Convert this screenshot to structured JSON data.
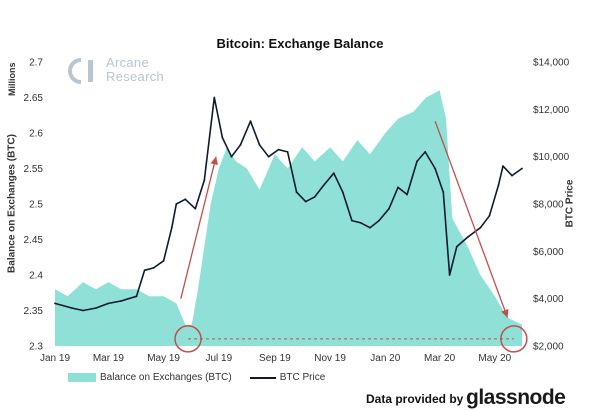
{
  "header": {
    "title": "Bitcoin: Exchange Balance"
  },
  "logo": {
    "line1": "Arcane",
    "line2": "Research",
    "icon": "arcane-research-logo"
  },
  "footer": {
    "provided_by": "Data provided by",
    "brand": "glassnode"
  },
  "colors": {
    "area": "#8fe0d6",
    "price_line": "#0f1a2e",
    "arrow": "#c0504d",
    "highlight": "#c0504d"
  },
  "chart_data": {
    "type": "area",
    "title": "Bitcoin: Exchange Balance",
    "y_unit_label": "Millions",
    "ylabel": "Balance on Exchanges (BTC)",
    "y2label": "BTC Price",
    "x_ticks": [
      "Jan 19",
      "Mar 19",
      "May 19",
      "Jul 19",
      "Sep 19",
      "Nov 19",
      "Jan 20",
      "Mar 20",
      "May 20"
    ],
    "y_ticks": [
      "2.3",
      "2.35",
      "2.4",
      "2.45",
      "2.5",
      "2.55",
      "2.6",
      "2.65",
      "2.7"
    ],
    "y2_ticks": [
      "$2,000",
      "$4,000",
      "$6,000",
      "$8,000",
      "$10,000",
      "$12,000",
      "$14,000"
    ],
    "ylim": [
      2.3,
      2.7
    ],
    "y2lim": [
      2000,
      14000
    ],
    "xlim": [
      "2019-01-01",
      "2020-05-31"
    ],
    "legend": [
      "Balance on Exchanges (BTC)",
      "BTC Price"
    ],
    "legend_position": "bottom",
    "series": [
      {
        "name": "Balance on Exchanges (BTC)",
        "axis": "left",
        "x": [
          "2019-01-01",
          "2019-01-15",
          "2019-02-01",
          "2019-02-15",
          "2019-03-01",
          "2019-03-15",
          "2019-04-01",
          "2019-04-15",
          "2019-05-01",
          "2019-05-15",
          "2019-05-25",
          "2019-06-01",
          "2019-06-08",
          "2019-06-15",
          "2019-06-22",
          "2019-07-01",
          "2019-07-10",
          "2019-07-20",
          "2019-08-01",
          "2019-08-15",
          "2019-09-01",
          "2019-09-15",
          "2019-10-01",
          "2019-10-15",
          "2019-11-01",
          "2019-11-15",
          "2019-12-01",
          "2019-12-15",
          "2020-01-01",
          "2020-01-15",
          "2020-02-01",
          "2020-02-15",
          "2020-03-01",
          "2020-03-08",
          "2020-03-15",
          "2020-04-01",
          "2020-04-15",
          "2020-05-01",
          "2020-05-15",
          "2020-05-31"
        ],
        "values": [
          2.38,
          2.37,
          2.39,
          2.38,
          2.39,
          2.38,
          2.38,
          2.37,
          2.37,
          2.36,
          2.33,
          2.33,
          2.38,
          2.44,
          2.5,
          2.55,
          2.58,
          2.56,
          2.55,
          2.52,
          2.57,
          2.55,
          2.58,
          2.56,
          2.58,
          2.56,
          2.59,
          2.57,
          2.6,
          2.62,
          2.63,
          2.65,
          2.66,
          2.62,
          2.48,
          2.44,
          2.4,
          2.37,
          2.34,
          2.33
        ]
      },
      {
        "name": "BTC Price",
        "axis": "right",
        "x": [
          "2019-01-01",
          "2019-01-20",
          "2019-02-01",
          "2019-02-15",
          "2019-03-01",
          "2019-03-15",
          "2019-04-01",
          "2019-04-10",
          "2019-04-20",
          "2019-05-01",
          "2019-05-10",
          "2019-05-15",
          "2019-05-25",
          "2019-06-05",
          "2019-06-15",
          "2019-06-26",
          "2019-07-05",
          "2019-07-15",
          "2019-07-25",
          "2019-08-05",
          "2019-08-15",
          "2019-08-25",
          "2019-09-05",
          "2019-09-15",
          "2019-09-25",
          "2019-10-05",
          "2019-10-15",
          "2019-10-25",
          "2019-11-05",
          "2019-11-15",
          "2019-11-25",
          "2019-12-05",
          "2019-12-15",
          "2019-12-25",
          "2020-01-05",
          "2020-01-15",
          "2020-01-25",
          "2020-02-05",
          "2020-02-14",
          "2020-02-25",
          "2020-03-05",
          "2020-03-12",
          "2020-03-20",
          "2020-04-01",
          "2020-04-15",
          "2020-04-25",
          "2020-05-05",
          "2020-05-10",
          "2020-05-20",
          "2020-05-31"
        ],
        "values": [
          3800,
          3600,
          3500,
          3600,
          3800,
          3900,
          4100,
          5200,
          5300,
          5600,
          7000,
          8000,
          8200,
          7800,
          9000,
          12500,
          10800,
          10000,
          10500,
          11500,
          10500,
          10000,
          10300,
          10200,
          8500,
          8100,
          8300,
          8800,
          9300,
          8500,
          7300,
          7200,
          7000,
          7300,
          7800,
          8700,
          8400,
          9800,
          10200,
          9500,
          8500,
          5000,
          6200,
          6600,
          7000,
          7500,
          8800,
          9600,
          9200,
          9500
        ]
      }
    ],
    "annotations": [
      {
        "type": "arrow",
        "from": [
          "2019-05-20",
          4000
        ],
        "to": [
          "2019-06-28",
          10000
        ]
      },
      {
        "type": "arrow",
        "from": [
          "2020-02-25",
          11500
        ],
        "to": [
          "2020-05-15",
          3200
        ]
      },
      {
        "type": "circle",
        "at": [
          "2019-05-28",
          2.31
        ]
      },
      {
        "type": "circle",
        "at": [
          "2020-05-22",
          2.31
        ]
      },
      {
        "type": "dashed-line",
        "from": [
          "2019-05-28",
          2.31
        ],
        "to": [
          "2020-05-22",
          2.31
        ]
      }
    ]
  }
}
